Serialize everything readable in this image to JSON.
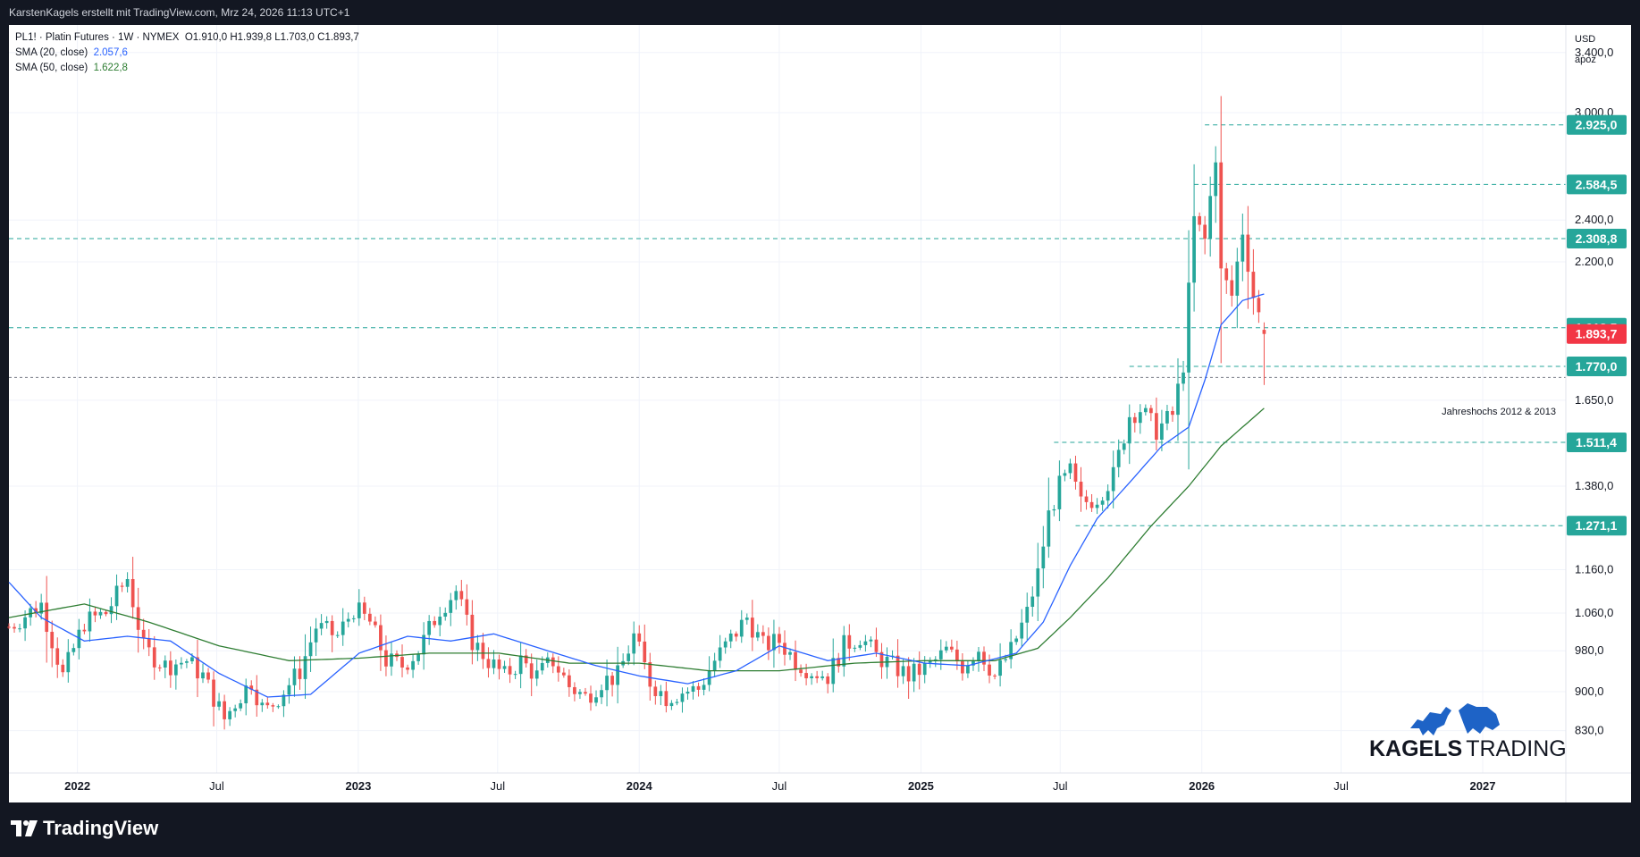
{
  "header": {
    "caption": "KarstenKagels erstellt mit TradingView.com, Mrz 24, 2026 11:13 UTC+1"
  },
  "legend": {
    "symbol": "PL1! · Platin Futures · 1W · NYMEX",
    "ohlc": "O1.910,0  H1.939,8  L1.703,0  C1.893,7",
    "sma20_label": "SMA (20, close)",
    "sma20_value": "2.057,6",
    "sma50_label": "SMA (50, close)",
    "sma50_value": "1.622,8"
  },
  "colors": {
    "up": "#26a69a",
    "down": "#ef5350",
    "sma20": "#2962ff",
    "sma50": "#2e7d32",
    "level_line": "#26a69a",
    "price_badge": "#f23645"
  },
  "price_scale": {
    "currency": "USD",
    "mode": "apoz"
  },
  "annotation": "Jahreshochs 2012 & 2013",
  "watermark": {
    "brand_bold": "KAGELS",
    "brand_light": "TRADING",
    "icons": [
      "bull-icon",
      "bear-icon"
    ]
  },
  "footer": {
    "brand": "TradingView",
    "icon": "tradingview-logo-icon"
  },
  "chart_data": {
    "type": "candlestick",
    "timeframe": "1W",
    "y_scale": "log",
    "ylim": [
      760,
      3600
    ],
    "xlim": [
      "2021-10-04",
      "2027-04-19"
    ],
    "y_ticks": [
      {
        "value": 3400,
        "label": "3.400,0"
      },
      {
        "value": 3000,
        "label": "3.000,0"
      },
      {
        "value": 2400,
        "label": "2.400,0"
      },
      {
        "value": 2200,
        "label": "2.200,0"
      },
      {
        "value": 1650,
        "label": "1.650,0"
      },
      {
        "value": 1380,
        "label": "1.380,0"
      },
      {
        "value": 1160,
        "label": "1.160,0"
      },
      {
        "value": 1060,
        "label": "1.060,0"
      },
      {
        "value": 980,
        "label": "980,0"
      },
      {
        "value": 900,
        "label": "900,0"
      },
      {
        "value": 830,
        "label": "830,0"
      }
    ],
    "x_ticks": [
      {
        "date": "2022-01-01",
        "label": "2022",
        "bold": true
      },
      {
        "date": "2022-07-01",
        "label": "Jul",
        "bold": false
      },
      {
        "date": "2023-01-01",
        "label": "2023",
        "bold": true
      },
      {
        "date": "2023-07-01",
        "label": "Jul",
        "bold": false
      },
      {
        "date": "2024-01-01",
        "label": "2024",
        "bold": true
      },
      {
        "date": "2024-07-01",
        "label": "Jul",
        "bold": false
      },
      {
        "date": "2025-01-01",
        "label": "2025",
        "bold": true
      },
      {
        "date": "2025-07-01",
        "label": "Jul",
        "bold": false
      },
      {
        "date": "2026-01-01",
        "label": "2026",
        "bold": true
      },
      {
        "date": "2026-07-01",
        "label": "Jul",
        "bold": false
      },
      {
        "date": "2027-01-01",
        "label": "2027",
        "bold": true
      }
    ],
    "levels": [
      {
        "value": 2925.0,
        "label": "2.925,0",
        "from": "2026-01-05"
      },
      {
        "value": 2584.5,
        "label": "2.584,5",
        "from": "2025-12-22"
      },
      {
        "value": 2308.8,
        "label": "2.308,8",
        "from": "2021-10-04"
      },
      {
        "value": 1918.5,
        "label": "1.918,5",
        "from": "2021-10-04"
      },
      {
        "value": 1770.0,
        "label": "1.770,0",
        "from": "2025-09-29"
      },
      {
        "value": 1511.4,
        "label": "1.511,4",
        "from": "2025-06-23"
      },
      {
        "value": 1271.1,
        "label": "1.271,1",
        "from": "2025-07-21"
      }
    ],
    "last_price": {
      "value": 1893.7,
      "label": "1.893,7"
    },
    "annotation_line": {
      "value": 1730,
      "label": "Jahreshochs 2012 & 2013"
    },
    "anchors": [
      [
        "2021-10-04",
        1030
      ],
      [
        "2021-11-15",
        1080
      ],
      [
        "2021-12-13",
        930
      ],
      [
        "2022-01-10",
        1040
      ],
      [
        "2022-02-07",
        1060
      ],
      [
        "2022-03-07",
        1140
      ],
      [
        "2022-03-28",
        985
      ],
      [
        "2022-04-25",
        950
      ],
      [
        "2022-05-23",
        960
      ],
      [
        "2022-06-13",
        930
      ],
      [
        "2022-07-11",
        850
      ],
      [
        "2022-07-25",
        880
      ],
      [
        "2022-08-15",
        920
      ],
      [
        "2022-09-01",
        860
      ],
      [
        "2022-09-19",
        890
      ],
      [
        "2022-10-17",
        940
      ],
      [
        "2022-11-07",
        1030
      ],
      [
        "2022-12-05",
        1010
      ],
      [
        "2022-12-26",
        1070
      ],
      [
        "2023-01-16",
        1040
      ],
      [
        "2023-02-06",
        960
      ],
      [
        "2023-02-27",
        950
      ],
      [
        "2023-03-20",
        980
      ],
      [
        "2023-04-17",
        1070
      ],
      [
        "2023-05-08",
        1110
      ],
      [
        "2023-05-29",
        1000
      ],
      [
        "2023-06-19",
        960
      ],
      [
        "2023-07-10",
        930
      ],
      [
        "2023-07-31",
        960
      ],
      [
        "2023-08-21",
        930
      ],
      [
        "2023-09-11",
        960
      ],
      [
        "2023-10-02",
        910
      ],
      [
        "2023-10-23",
        890
      ],
      [
        "2023-11-13",
        920
      ],
      [
        "2023-12-04",
        930
      ],
      [
        "2023-12-25",
        1010
      ],
      [
        "2024-01-15",
        920
      ],
      [
        "2024-02-05",
        890
      ],
      [
        "2024-02-26",
        900
      ],
      [
        "2024-03-18",
        905
      ],
      [
        "2024-04-08",
        960
      ],
      [
        "2024-05-20",
        1050
      ],
      [
        "2024-06-10",
        990
      ],
      [
        "2024-07-01",
        1000
      ],
      [
        "2024-07-22",
        960
      ],
      [
        "2024-08-12",
        940
      ],
      [
        "2024-09-02",
        930
      ],
      [
        "2024-09-23",
        990
      ],
      [
        "2024-10-14",
        1010
      ],
      [
        "2024-11-04",
        970
      ],
      [
        "2024-11-25",
        950
      ],
      [
        "2024-12-16",
        930
      ],
      [
        "2025-01-13",
        950
      ],
      [
        "2025-02-03",
        980
      ],
      [
        "2025-02-24",
        950
      ],
      [
        "2025-03-17",
        985
      ],
      [
        "2025-04-07",
        930
      ],
      [
        "2025-04-28",
        980
      ],
      [
        "2025-05-19",
        1060
      ],
      [
        "2025-06-02",
        1150
      ],
      [
        "2025-06-16",
        1300
      ],
      [
        "2025-06-30",
        1380
      ],
      [
        "2025-07-14",
        1420
      ],
      [
        "2025-07-28",
        1330
      ],
      [
        "2025-08-18",
        1350
      ],
      [
        "2025-09-08",
        1410
      ],
      [
        "2025-09-29",
        1600
      ],
      [
        "2025-10-13",
        1620
      ],
      [
        "2025-11-03",
        1550
      ],
      [
        "2025-11-24",
        1600
      ],
      [
        "2025-12-08",
        1780
      ],
      [
        "2025-12-22",
        2400
      ],
      [
        "2026-01-05",
        2300
      ],
      [
        "2026-01-19",
        2750
      ],
      [
        "2026-01-26",
        2150
      ],
      [
        "2026-02-09",
        2050
      ],
      [
        "2026-02-23",
        2350
      ],
      [
        "2026-03-09",
        2050
      ],
      [
        "2026-03-23",
        1893.7
      ]
    ],
    "sma20": [
      [
        "2021-10-04",
        1130
      ],
      [
        "2021-11-15",
        1050
      ],
      [
        "2022-01-10",
        1000
      ],
      [
        "2022-03-07",
        1010
      ],
      [
        "2022-05-02",
        1000
      ],
      [
        "2022-07-04",
        935
      ],
      [
        "2022-09-05",
        890
      ],
      [
        "2022-10-31",
        895
      ],
      [
        "2023-01-02",
        975
      ],
      [
        "2023-03-06",
        1010
      ],
      [
        "2023-05-01",
        1000
      ],
      [
        "2023-06-26",
        1015
      ],
      [
        "2023-09-04",
        980
      ],
      [
        "2023-11-06",
        950
      ],
      [
        "2024-01-01",
        930
      ],
      [
        "2024-03-04",
        915
      ],
      [
        "2024-05-06",
        940
      ],
      [
        "2024-07-01",
        990
      ],
      [
        "2024-09-02",
        960
      ],
      [
        "2024-11-04",
        975
      ],
      [
        "2025-01-06",
        955
      ],
      [
        "2025-03-03",
        950
      ],
      [
        "2025-05-05",
        975
      ],
      [
        "2025-06-09",
        1040
      ],
      [
        "2025-07-14",
        1170
      ],
      [
        "2025-08-18",
        1290
      ],
      [
        "2025-09-29",
        1390
      ],
      [
        "2025-11-10",
        1500
      ],
      [
        "2025-12-15",
        1560
      ],
      [
        "2026-01-05",
        1720
      ],
      [
        "2026-01-26",
        1930
      ],
      [
        "2026-02-23",
        2030
      ],
      [
        "2026-03-23",
        2057.6
      ]
    ],
    "sma50": [
      [
        "2021-10-04",
        1050
      ],
      [
        "2022-01-10",
        1080
      ],
      [
        "2022-04-04",
        1040
      ],
      [
        "2022-07-04",
        990
      ],
      [
        "2022-10-03",
        960
      ],
      [
        "2023-01-02",
        965
      ],
      [
        "2023-04-03",
        975
      ],
      [
        "2023-07-03",
        975
      ],
      [
        "2023-10-02",
        955
      ],
      [
        "2024-01-01",
        955
      ],
      [
        "2024-04-01",
        940
      ],
      [
        "2024-07-01",
        940
      ],
      [
        "2024-10-07",
        955
      ],
      [
        "2025-01-06",
        960
      ],
      [
        "2025-04-07",
        960
      ],
      [
        "2025-06-02",
        985
      ],
      [
        "2025-07-14",
        1050
      ],
      [
        "2025-09-01",
        1140
      ],
      [
        "2025-10-27",
        1270
      ],
      [
        "2025-12-15",
        1380
      ],
      [
        "2026-01-26",
        1500
      ],
      [
        "2026-03-23",
        1622.8
      ]
    ]
  }
}
